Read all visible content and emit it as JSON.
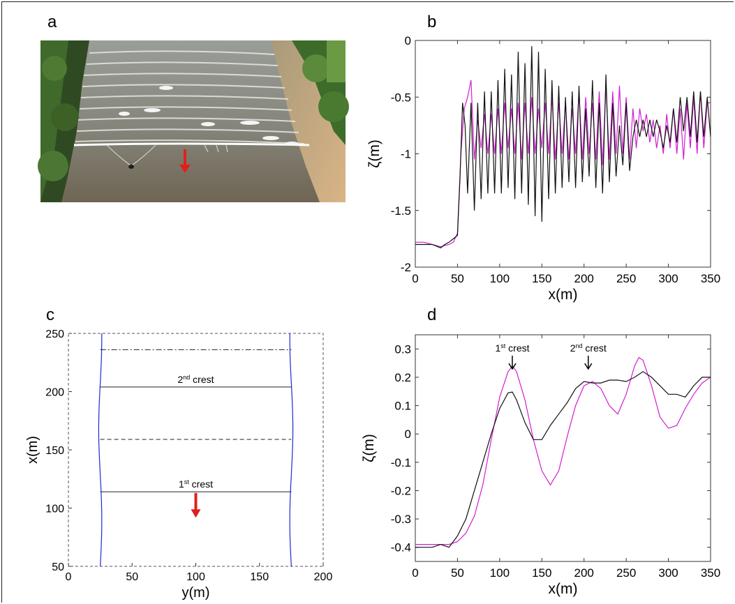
{
  "figure": {
    "panels": {
      "a": "a",
      "b": "b",
      "c": "c",
      "d": "d"
    }
  },
  "photo": {
    "description_icon": "river-bore-photo",
    "arrow_color": "#e0201b"
  },
  "colors": {
    "black_series": "#111111",
    "magenta_series": "#d21fd2",
    "blue_boundary": "#1b2bd6",
    "arrow": "#e0201b"
  },
  "chart_data": [
    {
      "panel": "b",
      "type": "line",
      "xlabel": "x(m)",
      "ylabel": "ζ(m)",
      "xlim": [
        0,
        350
      ],
      "ylim": [
        -2,
        0
      ],
      "xticks": [
        "0",
        "50",
        "100",
        "150",
        "200",
        "250",
        "300",
        "350"
      ],
      "yticks": [
        "-2",
        "-1.5",
        "-1",
        "-0.5",
        "0"
      ],
      "series": [
        {
          "color": "#111111",
          "x": [
            0,
            10,
            20,
            30,
            35,
            40,
            45,
            50,
            53,
            56,
            59,
            62,
            66,
            70,
            74,
            78,
            82,
            86,
            90,
            94,
            98,
            102,
            106,
            110,
            114,
            118,
            122,
            126,
            130,
            134,
            138,
            142,
            146,
            150,
            154,
            158,
            162,
            166,
            170,
            174,
            178,
            182,
            186,
            190,
            194,
            198,
            202,
            206,
            210,
            214,
            218,
            222,
            226,
            230,
            234,
            238,
            242,
            246,
            250,
            254,
            258,
            262,
            266,
            270,
            274,
            278,
            282,
            286,
            290,
            294,
            298,
            302,
            306,
            310,
            314,
            318,
            322,
            326,
            330,
            334,
            338,
            342,
            346,
            350
          ],
          "y": [
            -1.8,
            -1.8,
            -1.8,
            -1.83,
            -1.8,
            -1.78,
            -1.75,
            -1.72,
            -1.2,
            -0.55,
            -0.75,
            -1.35,
            -0.55,
            -1.5,
            -0.55,
            -1.4,
            -0.45,
            -1.35,
            -0.45,
            -1.35,
            -0.35,
            -1.35,
            -0.25,
            -1.3,
            -0.3,
            -1.4,
            -0.1,
            -1.35,
            -0.2,
            -1.45,
            -0.05,
            -1.55,
            -0.1,
            -1.6,
            -0.25,
            -1.4,
            -0.35,
            -1.35,
            -0.4,
            -1.3,
            -0.5,
            -1.25,
            -0.45,
            -1.3,
            -0.4,
            -1.25,
            -0.6,
            -1.2,
            -0.35,
            -1.3,
            -0.55,
            -1.35,
            -0.3,
            -1.25,
            -0.55,
            -1.2,
            -0.75,
            -1.1,
            -0.55,
            -1.15,
            -0.85,
            -0.7,
            -0.85,
            -0.7,
            -0.85,
            -0.7,
            -0.85,
            -0.7,
            -0.8,
            -0.95,
            -0.75,
            -0.9,
            -0.6,
            -0.9,
            -0.5,
            -0.8,
            -0.5,
            -0.85,
            -0.45,
            -0.9,
            -0.45,
            -0.85,
            -0.5,
            -0.85
          ]
        },
        {
          "color": "#d21fd2",
          "x": [
            0,
            10,
            20,
            30,
            40,
            45,
            50,
            54,
            58,
            62,
            66,
            70,
            74,
            78,
            82,
            86,
            90,
            94,
            98,
            102,
            106,
            110,
            114,
            118,
            122,
            126,
            130,
            134,
            138,
            142,
            146,
            150,
            154,
            158,
            162,
            166,
            170,
            174,
            178,
            182,
            186,
            190,
            194,
            198,
            202,
            206,
            210,
            214,
            218,
            222,
            226,
            230,
            234,
            238,
            242,
            246,
            250,
            254,
            258,
            262,
            266,
            270,
            274,
            278,
            282,
            286,
            290,
            294,
            298,
            302,
            306,
            310,
            314,
            318,
            322,
            326,
            330,
            334,
            338,
            342,
            346,
            350
          ],
          "y": [
            -1.78,
            -1.78,
            -1.8,
            -1.82,
            -1.8,
            -1.78,
            -1.7,
            -1.0,
            -0.6,
            -0.5,
            -0.35,
            -1.05,
            -0.7,
            -0.95,
            -0.65,
            -1.0,
            -0.65,
            -1.0,
            -0.6,
            -1.0,
            -0.55,
            -0.95,
            -0.6,
            -1.0,
            -0.55,
            -1.05,
            -0.55,
            -1.0,
            -0.5,
            -1.0,
            -0.6,
            -0.95,
            -0.55,
            -1.0,
            -0.5,
            -1.05,
            -0.55,
            -1.0,
            -0.55,
            -1.05,
            -0.6,
            -1.0,
            -0.45,
            -1.05,
            -0.5,
            -1.0,
            -0.55,
            -1.05,
            -0.45,
            -1.1,
            -0.4,
            -1.05,
            -0.45,
            -1.0,
            -0.4,
            -1.0,
            -0.5,
            -1.05,
            -0.6,
            -0.95,
            -0.6,
            -0.8,
            -0.65,
            -0.9,
            -0.7,
            -0.95,
            -0.75,
            -1.0,
            -0.65,
            -0.95,
            -0.6,
            -1.0,
            -0.6,
            -1.05,
            -0.55,
            -0.95,
            -0.5,
            -1.0,
            -0.45,
            -0.95,
            -0.55,
            -0.55
          ]
        }
      ]
    },
    {
      "panel": "c",
      "type": "diagram",
      "xlabel": "y(m)",
      "ylabel": "x(m)",
      "xlim": [
        0,
        200
      ],
      "ylim": [
        50,
        250
      ],
      "xticks": [
        "0",
        "50",
        "100",
        "150",
        "200"
      ],
      "yticks": [
        "50",
        "100",
        "150",
        "200",
        "250"
      ],
      "crest_lines": [
        {
          "x": 114,
          "style": "solid",
          "label": "1",
          "label_sup": "st",
          "label_rest": " crest"
        },
        {
          "x": 159,
          "style": "dashed"
        },
        {
          "x": 204,
          "style": "solid",
          "label": "2",
          "label_sup": "nd",
          "label_rest": " crest"
        },
        {
          "x": 236,
          "style": "dashdot"
        }
      ],
      "banks_y": [
        25,
        175
      ],
      "arrow": {
        "y": 100,
        "x_from": 113,
        "x_to": 93
      }
    },
    {
      "panel": "d",
      "type": "line",
      "xlabel": "x(m)",
      "ylabel": "ζ(m)",
      "xlim": [
        0,
        350
      ],
      "ylim": [
        -0.45,
        0.35
      ],
      "xticks": [
        "0",
        "50",
        "100",
        "150",
        "200",
        "250",
        "300",
        "350"
      ],
      "yticks": [
        "-0.4",
        "-0.3",
        "-0.2",
        "-0.1",
        "0",
        "0.1",
        "0.2",
        "0.3"
      ],
      "annotations": [
        {
          "x": 115,
          "label": "1",
          "sup": "st",
          "rest": " crest"
        },
        {
          "x": 205,
          "label": "2",
          "sup": "nd",
          "rest": " crest"
        }
      ],
      "series": [
        {
          "color": "#111111",
          "x": [
            0,
            10,
            20,
            30,
            40,
            50,
            60,
            70,
            80,
            90,
            100,
            110,
            115,
            120,
            130,
            140,
            150,
            160,
            170,
            180,
            190,
            200,
            210,
            220,
            230,
            240,
            250,
            260,
            270,
            280,
            290,
            300,
            310,
            320,
            330,
            340,
            350
          ],
          "y": [
            -0.4,
            -0.4,
            -0.4,
            -0.39,
            -0.4,
            -0.36,
            -0.3,
            -0.2,
            -0.1,
            0.0,
            0.09,
            0.145,
            0.148,
            0.12,
            0.04,
            -0.02,
            -0.02,
            0.03,
            0.07,
            0.11,
            0.16,
            0.185,
            0.18,
            0.18,
            0.19,
            0.19,
            0.185,
            0.2,
            0.22,
            0.2,
            0.17,
            0.14,
            0.14,
            0.13,
            0.17,
            0.2,
            0.2
          ]
        },
        {
          "color": "#d21fd2",
          "x": [
            0,
            10,
            20,
            30,
            40,
            50,
            60,
            70,
            80,
            90,
            100,
            110,
            115,
            120,
            130,
            140,
            150,
            160,
            170,
            180,
            190,
            200,
            210,
            220,
            230,
            240,
            250,
            260,
            265,
            270,
            280,
            290,
            300,
            310,
            320,
            330,
            340,
            350
          ],
          "y": [
            -0.39,
            -0.39,
            -0.39,
            -0.39,
            -0.39,
            -0.38,
            -0.35,
            -0.29,
            -0.18,
            -0.02,
            0.13,
            0.22,
            0.24,
            0.22,
            0.12,
            -0.02,
            -0.13,
            -0.18,
            -0.13,
            -0.01,
            0.1,
            0.17,
            0.185,
            0.16,
            0.1,
            0.07,
            0.14,
            0.24,
            0.27,
            0.26,
            0.17,
            0.06,
            0.02,
            0.03,
            0.09,
            0.14,
            0.18,
            0.2
          ]
        }
      ]
    }
  ]
}
